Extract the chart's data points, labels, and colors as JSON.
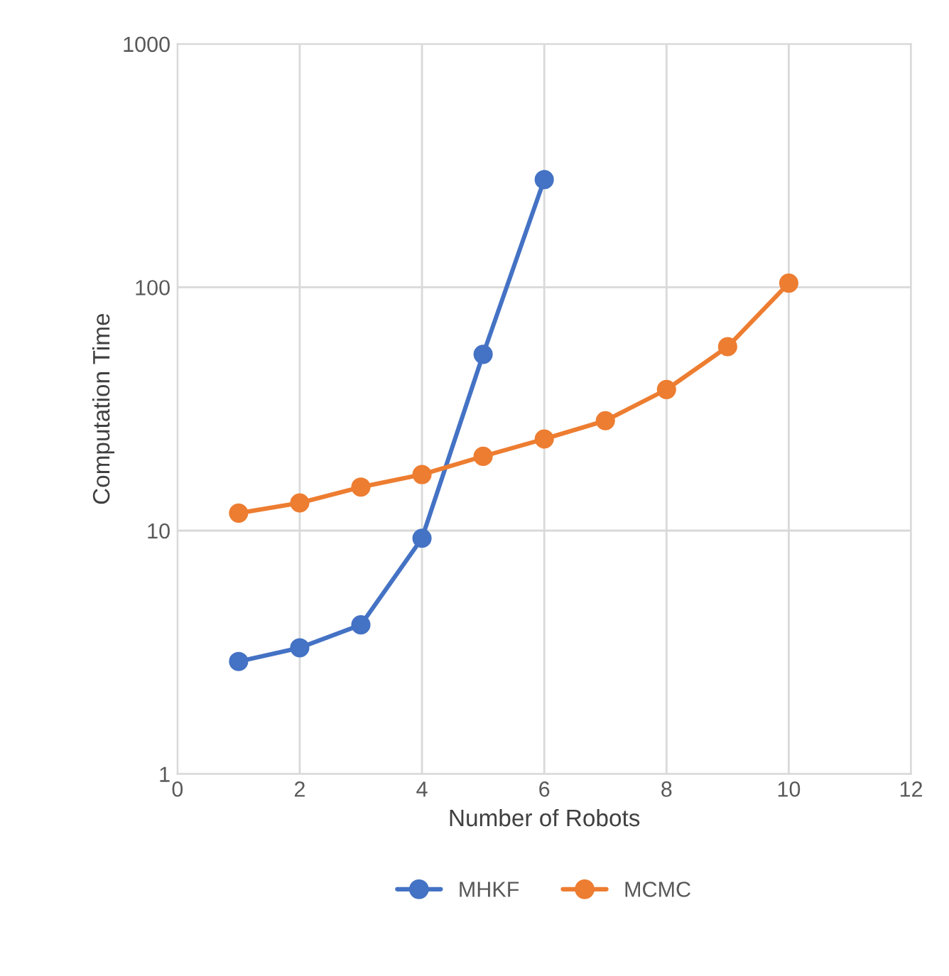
{
  "chart_data": {
    "type": "line",
    "xlabel": "Number of Robots",
    "ylabel": "Computation Time",
    "log": "y",
    "grid": true,
    "legend": "bottom",
    "marker": "circle",
    "line_style": "solid",
    "xlim": [
      0,
      12
    ],
    "xticks": [
      0,
      2,
      4,
      6,
      8,
      10,
      12
    ],
    "ylim": [
      1,
      1000
    ],
    "yticks": [
      1,
      10,
      100,
      1000
    ],
    "series": [
      {
        "name": "MHKF",
        "color": "#4472c4",
        "x": [
          1,
          2,
          3,
          4,
          5,
          6
        ],
        "values": [
          2.9,
          3.3,
          4.1,
          9.3,
          53,
          277
        ]
      },
      {
        "name": "MCMC",
        "color": "#ed7d31",
        "x": [
          1,
          2,
          3,
          4,
          5,
          6,
          7,
          8,
          9,
          10
        ],
        "values": [
          11.8,
          13.0,
          15.1,
          17.0,
          20.2,
          23.8,
          28.3,
          38,
          57,
          104
        ]
      }
    ]
  }
}
